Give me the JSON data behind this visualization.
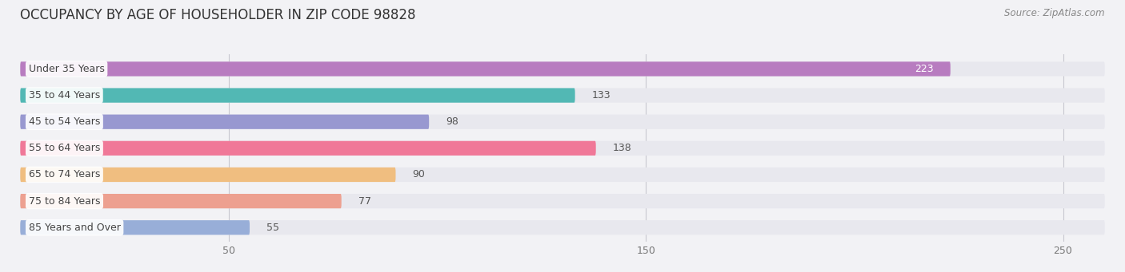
{
  "title": "OCCUPANCY BY AGE OF HOUSEHOLDER IN ZIP CODE 98828",
  "source": "Source: ZipAtlas.com",
  "categories": [
    "Under 35 Years",
    "35 to 44 Years",
    "45 to 54 Years",
    "55 to 64 Years",
    "65 to 74 Years",
    "75 to 84 Years",
    "85 Years and Over"
  ],
  "values": [
    223,
    133,
    98,
    138,
    90,
    77,
    55
  ],
  "bar_colors": [
    "#b87cc0",
    "#52b8b4",
    "#9898d0",
    "#f07898",
    "#f0be80",
    "#eda090",
    "#98aed8"
  ],
  "xlim": [
    0,
    260
  ],
  "xticks": [
    50,
    150,
    250
  ],
  "bg_color": "#f2f2f5",
  "bar_bg_color": "#e8e8ee",
  "title_fontsize": 12,
  "label_fontsize": 9,
  "value_fontsize": 9,
  "source_fontsize": 8.5,
  "bar_height": 0.55,
  "bar_spacing": 1.0
}
